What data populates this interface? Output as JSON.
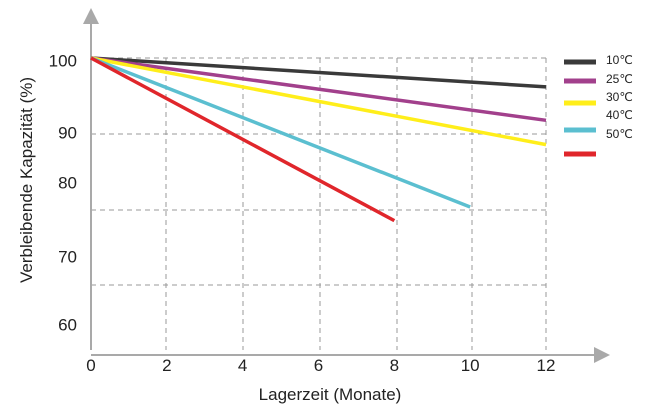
{
  "chart_data": {
    "type": "line",
    "title": "",
    "xlabel": "Lagerzeit (Monate)",
    "ylabel": "Verbleibende Kapazität (%)",
    "x_ticks": [
      "0",
      "2",
      "4",
      "6",
      "8",
      "10",
      "12"
    ],
    "y_ticks": [
      "100",
      "90",
      "80",
      "70",
      "60"
    ],
    "xlim": [
      0,
      12
    ],
    "grid": true,
    "legend_position": "right",
    "series": [
      {
        "name": "10℃",
        "color": "#3a3a3a",
        "x": [
          0,
          12
        ],
        "y": [
          100,
          96.2
        ]
      },
      {
        "name": "25℃",
        "color": "#a2408c",
        "x": [
          0,
          12
        ],
        "y": [
          100,
          91.8
        ]
      },
      {
        "name": "30℃",
        "color": "#ffee1a",
        "x": [
          0,
          12
        ],
        "y": [
          100,
          88.6
        ]
      },
      {
        "name": "40℃",
        "color": "#5bbfd0",
        "x": [
          0,
          10
        ],
        "y": [
          100,
          80.4
        ]
      },
      {
        "name": "50℃",
        "color": "#e0262b",
        "x": [
          0,
          8
        ],
        "y": [
          100,
          78.6
        ]
      }
    ]
  }
}
